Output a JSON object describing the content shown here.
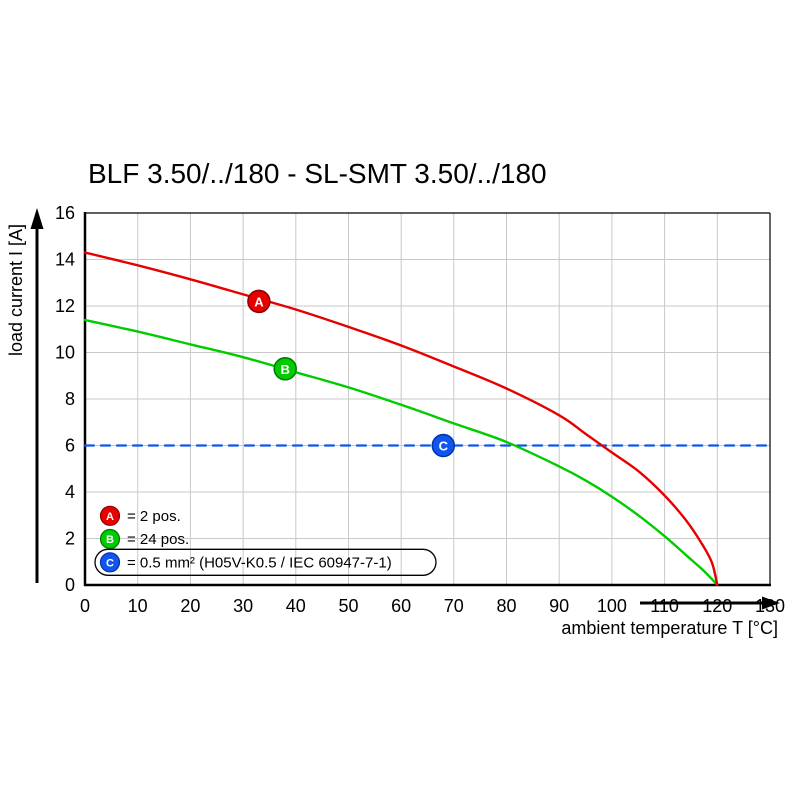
{
  "chart_data": {
    "type": "line",
    "title": "BLF 3.50/../180 - SL-SMT 3.50/../180",
    "xlabel": "ambient temperature T [°C]",
    "ylabel": "load current I [A]",
    "xlim": [
      0,
      130
    ],
    "ylim": [
      0,
      16
    ],
    "xticks": [
      0,
      10,
      20,
      30,
      40,
      50,
      60,
      70,
      80,
      90,
      100,
      110,
      120,
      130
    ],
    "yticks": [
      0,
      2,
      4,
      6,
      8,
      10,
      12,
      14,
      16
    ],
    "grid": true,
    "legend_position": "bottom-left",
    "series": [
      {
        "name": "2 pos.",
        "marker_label": "A",
        "color": "#e60000",
        "style": "solid",
        "points": [
          [
            0,
            14.3
          ],
          [
            10,
            13.75
          ],
          [
            20,
            13.15
          ],
          [
            30,
            12.5
          ],
          [
            40,
            11.85
          ],
          [
            50,
            11.1
          ],
          [
            60,
            10.3
          ],
          [
            70,
            9.4
          ],
          [
            80,
            8.45
          ],
          [
            90,
            7.3
          ],
          [
            95,
            6.5
          ],
          [
            100,
            5.7
          ],
          [
            105,
            4.9
          ],
          [
            110,
            3.85
          ],
          [
            114,
            2.8
          ],
          [
            117,
            1.8
          ],
          [
            119,
            0.95
          ],
          [
            120,
            0
          ]
        ]
      },
      {
        "name": "24 pos.",
        "marker_label": "B",
        "color": "#00cc00",
        "style": "solid",
        "points": [
          [
            0,
            11.4
          ],
          [
            10,
            10.9
          ],
          [
            20,
            10.35
          ],
          [
            30,
            9.8
          ],
          [
            40,
            9.15
          ],
          [
            50,
            8.5
          ],
          [
            60,
            7.75
          ],
          [
            70,
            6.95
          ],
          [
            80,
            6.15
          ],
          [
            90,
            5.1
          ],
          [
            95,
            4.5
          ],
          [
            100,
            3.8
          ],
          [
            105,
            3.0
          ],
          [
            110,
            2.1
          ],
          [
            114,
            1.3
          ],
          [
            117,
            0.7
          ],
          [
            119,
            0.25
          ],
          [
            120,
            0
          ]
        ]
      },
      {
        "name": "0.5 mm² (H05V-K0.5 / IEC 60947-7-1)",
        "marker_label": "C",
        "color": "#1155ee",
        "style": "dashed",
        "points": [
          [
            0,
            6
          ],
          [
            130,
            6
          ]
        ]
      }
    ],
    "markers": [
      {
        "label": "A",
        "x": 33,
        "y": 12.2,
        "color": "#e60000",
        "stroke": "#8e0000"
      },
      {
        "label": "B",
        "x": 38,
        "y": 9.3,
        "color": "#00cc00",
        "stroke": "#007700"
      },
      {
        "label": "C",
        "x": 68,
        "y": 6,
        "color": "#1155ee",
        "stroke": "#0033aa"
      }
    ],
    "legend": [
      {
        "label": "A",
        "text": "= 2 pos.",
        "color": "#e60000",
        "stroke": "#8e0000",
        "boxed": false
      },
      {
        "label": "B",
        "text": "= 24 pos.",
        "color": "#00cc00",
        "stroke": "#007700",
        "boxed": false
      },
      {
        "label": "C",
        "text": "= 0.5 mm² (H05V-K0.5 / IEC 60947-7-1)",
        "color": "#1155ee",
        "stroke": "#0033aa",
        "boxed": true
      }
    ]
  }
}
